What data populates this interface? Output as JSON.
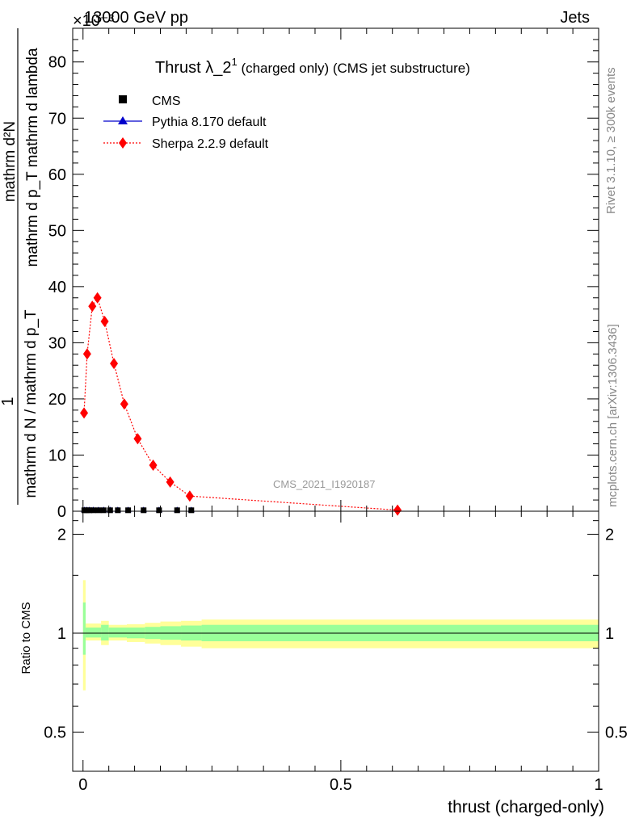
{
  "header": {
    "energy_label": "13000 GeV pp",
    "category_label": "Jets",
    "exponent_label": "×10⁻³"
  },
  "side_labels": {
    "rivet": "Rivet 3.1.10, ≥ 300k events",
    "mcplots": "mcplots.cern.ch [arXiv:1306.3436]"
  },
  "main_title": {
    "text": "Thrust λ_2",
    "sup": "1",
    "suffix": " (charged only) (CMS jet substructure)"
  },
  "watermark": "CMS_2021_I1920187",
  "legend": {
    "cms": "CMS",
    "pythia": "Pythia 8.170 default",
    "sherpa": "Sherpa 2.2.9 default"
  },
  "axes": {
    "ylabel_top": "1",
    "ylabel_top_denominator": "mathrm d N / mathrm d p_T",
    "ylabel_numerator": "mathrm d²N",
    "ylabel_denominator": "mathrm d p_T mathrm d lambda",
    "ylabel_ratio": "Ratio to CMS",
    "xlabel": "thrust (charged-only)"
  },
  "colors": {
    "cms": "#000000",
    "pythia": "#0000cc",
    "sherpa": "#ff0000",
    "band_inner": "#99ff99",
    "band_outer": "#ffff99"
  },
  "chart_data": [
    {
      "type": "line",
      "panel": "main",
      "xlim": [
        -0.02,
        1.0
      ],
      "ylim": [
        0,
        86
      ],
      "y_scale_note": "x 10^-3",
      "yticks": [
        0,
        10,
        20,
        30,
        40,
        50,
        60,
        70,
        80
      ],
      "series": [
        {
          "name": "CMS",
          "marker": "square",
          "x": [
            0.0025,
            0.0075,
            0.0125,
            0.02,
            0.03,
            0.04,
            0.0525,
            0.0675,
            0.0875,
            0.1175,
            0.1475,
            0.1825,
            0.21
          ],
          "values": [
            0.1,
            0.1,
            0.1,
            0.1,
            0.1,
            0.1,
            0.1,
            0.1,
            0.1,
            0.1,
            0.1,
            0.1,
            0.1
          ]
        },
        {
          "name": "Pythia 8.170 default",
          "marker": "triangle",
          "x": [
            0.0025,
            0.0075,
            0.0125,
            0.02,
            0.03,
            0.04,
            0.0525,
            0.0675,
            0.0875,
            0.1175,
            0.1475,
            0.1825,
            0.21
          ],
          "values": [
            0.1,
            0.1,
            0.1,
            0.1,
            0.1,
            0.1,
            0.1,
            0.1,
            0.1,
            0.1,
            0.1,
            0.1,
            0.1
          ]
        },
        {
          "name": "Sherpa 2.2.9 default",
          "marker": "diamond",
          "x": [
            0.002,
            0.008,
            0.018,
            0.028,
            0.042,
            0.06,
            0.08,
            0.106,
            0.136,
            0.169,
            0.207,
            0.61
          ],
          "values": [
            17.5,
            28.0,
            36.5,
            38.0,
            33.8,
            26.3,
            19.1,
            12.9,
            8.2,
            5.2,
            2.7,
            0.2
          ]
        }
      ]
    },
    {
      "type": "area",
      "panel": "ratio",
      "xlim": [
        -0.02,
        1.0
      ],
      "ylim": [
        0.38,
        2.35
      ],
      "yticks": [
        0.5,
        1,
        2
      ],
      "xticks": [
        0,
        0.5,
        1
      ],
      "reference_line": 1,
      "bins": [
        {
          "x0": 0.0,
          "x1": 0.005,
          "inner": [
            0.86,
            1.24
          ],
          "outer": [
            0.67,
            1.45
          ]
        },
        {
          "x0": 0.005,
          "x1": 0.035,
          "inner": [
            0.97,
            1.04
          ],
          "outer": [
            0.95,
            1.07
          ]
        },
        {
          "x0": 0.035,
          "x1": 0.05,
          "inner": [
            0.95,
            1.06
          ],
          "outer": [
            0.92,
            1.09
          ]
        },
        {
          "x0": 0.05,
          "x1": 0.085,
          "inner": [
            0.97,
            1.04
          ],
          "outer": [
            0.95,
            1.06
          ]
        },
        {
          "x0": 0.085,
          "x1": 0.12,
          "inner": [
            0.965,
            1.04
          ],
          "outer": [
            0.94,
            1.065
          ]
        },
        {
          "x0": 0.12,
          "x1": 0.15,
          "inner": [
            0.96,
            1.045
          ],
          "outer": [
            0.93,
            1.075
          ]
        },
        {
          "x0": 0.15,
          "x1": 0.19,
          "inner": [
            0.955,
            1.05
          ],
          "outer": [
            0.92,
            1.085
          ]
        },
        {
          "x0": 0.19,
          "x1": 0.23,
          "inner": [
            0.95,
            1.055
          ],
          "outer": [
            0.91,
            1.09
          ]
        },
        {
          "x0": 0.23,
          "x1": 1.0,
          "inner": [
            0.945,
            1.06
          ],
          "outer": [
            0.9,
            1.1
          ]
        }
      ]
    }
  ]
}
